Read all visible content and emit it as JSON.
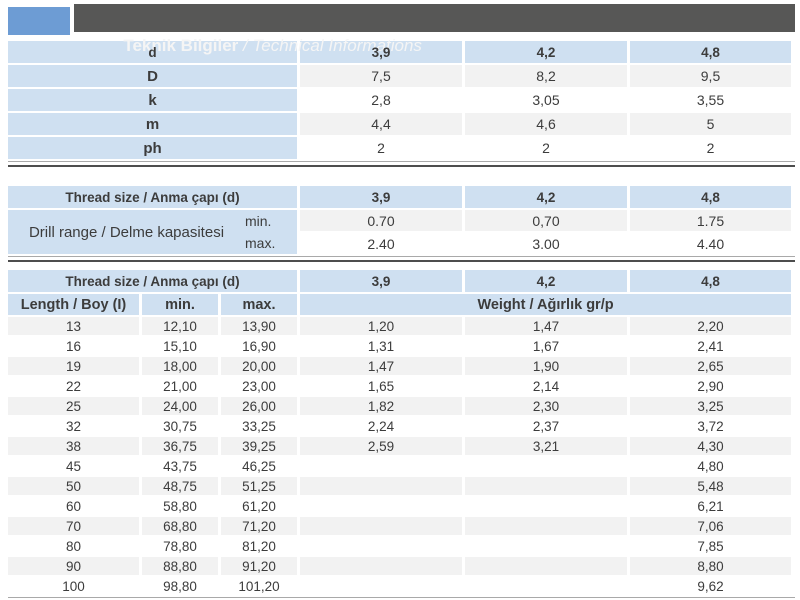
{
  "colors": {
    "square": "#6d9cd4",
    "bar": "#575756",
    "cellblue": "#cfe0f1",
    "stripe": "#f2f2f2",
    "text": "#3c3c3c",
    "ruledark": "#4d4d4d",
    "rulelight": "#a9a9a9",
    "titletext": "#f5f5f5"
  },
  "header": {
    "title_tr": "Teknik Bilgiler",
    "separator": " / ",
    "title_en": "Technical Informations"
  },
  "table1": {
    "header_row": {
      "label": "d",
      "values": [
        "3,9",
        "4,2",
        "4,8"
      ]
    },
    "rows": [
      {
        "label": "D",
        "values": [
          "7,5",
          "8,2",
          "9,5"
        ]
      },
      {
        "label": "k",
        "values": [
          "2,8",
          "3,05",
          "3,55"
        ]
      },
      {
        "label": "m",
        "values": [
          "4,4",
          "4,6",
          "5"
        ]
      },
      {
        "label": "ph",
        "values": [
          "2",
          "2",
          "2"
        ]
      }
    ]
  },
  "table2": {
    "header": {
      "label": "Thread size / Anma çapı (d)",
      "values": [
        "3,9",
        "4,2",
        "4,8"
      ]
    },
    "drill_label": "Drill range / Delme kapasitesi",
    "rows": [
      {
        "sub": "min.",
        "values": [
          "0.70",
          "0,70",
          "1.75"
        ]
      },
      {
        "sub": "max.",
        "values": [
          "2.40",
          "3.00",
          "4.40"
        ]
      }
    ]
  },
  "table3": {
    "header": {
      "label": "Thread size / Anma çapı (d)",
      "values": [
        "3,9",
        "4,2",
        "4,8"
      ]
    },
    "subheader": {
      "length": "Length / Boy (I)",
      "min": "min.",
      "max": "max.",
      "weight": "Weight / Ağırlık gr/p"
    },
    "rows": [
      [
        "13",
        "12,10",
        "13,90",
        "1,20",
        "1,47",
        "2,20"
      ],
      [
        "16",
        "15,10",
        "16,90",
        "1,31",
        "1,67",
        "2,41"
      ],
      [
        "19",
        "18,00",
        "20,00",
        "1,47",
        "1,90",
        "2,65"
      ],
      [
        "22",
        "21,00",
        "23,00",
        "1,65",
        "2,14",
        "2,90"
      ],
      [
        "25",
        "24,00",
        "26,00",
        "1,82",
        "2,30",
        "3,25"
      ],
      [
        "32",
        "30,75",
        "33,25",
        "2,24",
        "2,37",
        "3,72"
      ],
      [
        "38",
        "36,75",
        "39,25",
        "2,59",
        "3,21",
        "4,30"
      ],
      [
        "45",
        "43,75",
        "46,25",
        "",
        "",
        "4,80"
      ],
      [
        "50",
        "48,75",
        "51,25",
        "",
        "",
        "5,48"
      ],
      [
        "60",
        "58,80",
        "61,20",
        "",
        "",
        "6,21"
      ],
      [
        "70",
        "68,80",
        "71,20",
        "",
        "",
        "7,06"
      ],
      [
        "80",
        "78,80",
        "81,20",
        "",
        "",
        "7,85"
      ],
      [
        "90",
        "88,80",
        "91,20",
        "",
        "",
        "8,80"
      ],
      [
        "100",
        "98,80",
        "101,20",
        "",
        "",
        "9,62"
      ]
    ]
  }
}
